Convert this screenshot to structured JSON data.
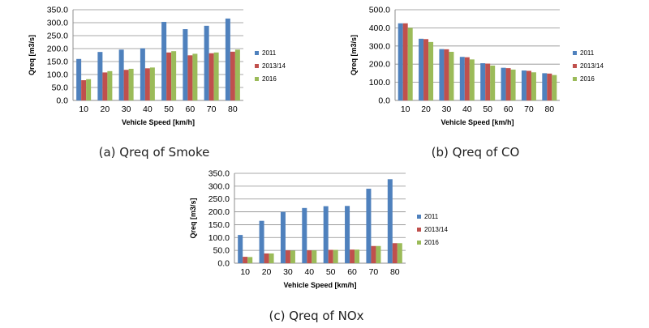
{
  "chart_data": [
    {
      "type": "bar",
      "caption": "(a) Qreq of Smoke",
      "xlabel": "Vehicle Speed [km/h]",
      "ylabel": "Qreq [m3/s]",
      "categories": [
        "10",
        "20",
        "30",
        "40",
        "50",
        "60",
        "70",
        "80"
      ],
      "ylim": [
        0,
        350
      ],
      "yticks": [
        "0.0",
        "50.0",
        "100.0",
        "150.0",
        "200.0",
        "250.0",
        "300.0",
        "350.0"
      ],
      "grid": true,
      "legend_position": "right",
      "series": [
        {
          "name": "2011",
          "color": "#4F81BD",
          "values": [
            160,
            187,
            196,
            201,
            303,
            275,
            288,
            316
          ]
        },
        {
          "name": "2013/14",
          "color": "#C0504D",
          "values": [
            78,
            108,
            118,
            124,
            185,
            174,
            182,
            188
          ]
        },
        {
          "name": "2016",
          "color": "#9BBB59",
          "values": [
            82,
            113,
            122,
            127,
            190,
            180,
            185,
            196
          ]
        }
      ]
    },
    {
      "type": "bar",
      "caption": "(b) Qreq of CO",
      "xlabel": "Vehicle Speed [km/h]",
      "ylabel": "Qreq [m3/s]",
      "categories": [
        "10",
        "20",
        "30",
        "40",
        "50",
        "60",
        "70",
        "80"
      ],
      "ylim": [
        0,
        500
      ],
      "yticks": [
        "0.0",
        "100.0",
        "200.0",
        "300.0",
        "400.0",
        "500.0"
      ],
      "grid": true,
      "legend_position": "right",
      "series": [
        {
          "name": "2011",
          "color": "#4F81BD",
          "values": [
            425,
            340,
            283,
            240,
            205,
            180,
            165,
            150
          ]
        },
        {
          "name": "2013/14",
          "color": "#C0504D",
          "values": [
            425,
            338,
            282,
            238,
            203,
            178,
            163,
            148
          ]
        },
        {
          "name": "2016",
          "color": "#9BBB59",
          "values": [
            400,
            322,
            268,
            226,
            192,
            170,
            155,
            140
          ]
        }
      ]
    },
    {
      "type": "bar",
      "caption": "(c) Qreq of NOx",
      "xlabel": "Vehicle Speed [km/h]",
      "ylabel": "Qreq [m3/s]",
      "categories": [
        "10",
        "20",
        "30",
        "40",
        "50",
        "60",
        "70",
        "80"
      ],
      "ylim": [
        0,
        350
      ],
      "yticks": [
        "0.0",
        "50.0",
        "100.0",
        "150.0",
        "200.0",
        "250.0",
        "300.0",
        "350.0"
      ],
      "grid": true,
      "legend_position": "right",
      "series": [
        {
          "name": "2011",
          "color": "#4F81BD",
          "values": [
            110,
            165,
            200,
            215,
            222,
            223,
            290,
            327
          ]
        },
        {
          "name": "2013/14",
          "color": "#C0504D",
          "values": [
            25,
            38,
            50,
            50,
            52,
            53,
            67,
            78
          ]
        },
        {
          "name": "2016",
          "color": "#9BBB59",
          "values": [
            24,
            38,
            49,
            50,
            52,
            53,
            67,
            78
          ]
        }
      ]
    }
  ]
}
